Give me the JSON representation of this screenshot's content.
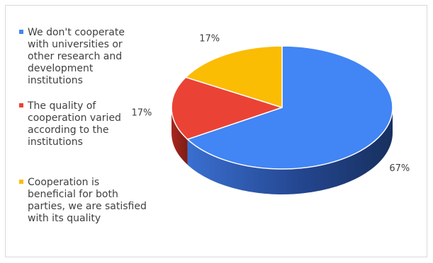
{
  "chart_data": {
    "type": "pie",
    "style": "3d",
    "legend": "left",
    "categories": [
      "We don't cooperate with universities or other research and development institutions",
      "The quality of cooperation varied according to the institutions",
      "Cooperation is beneficial for both parties, we are satisfied with its quality"
    ],
    "values": [
      67,
      17,
      17
    ],
    "data_labels": [
      "67%",
      "17%",
      "17%"
    ],
    "colors": [
      "#4285F4",
      "#EA4335",
      "#FBBC04"
    ]
  }
}
